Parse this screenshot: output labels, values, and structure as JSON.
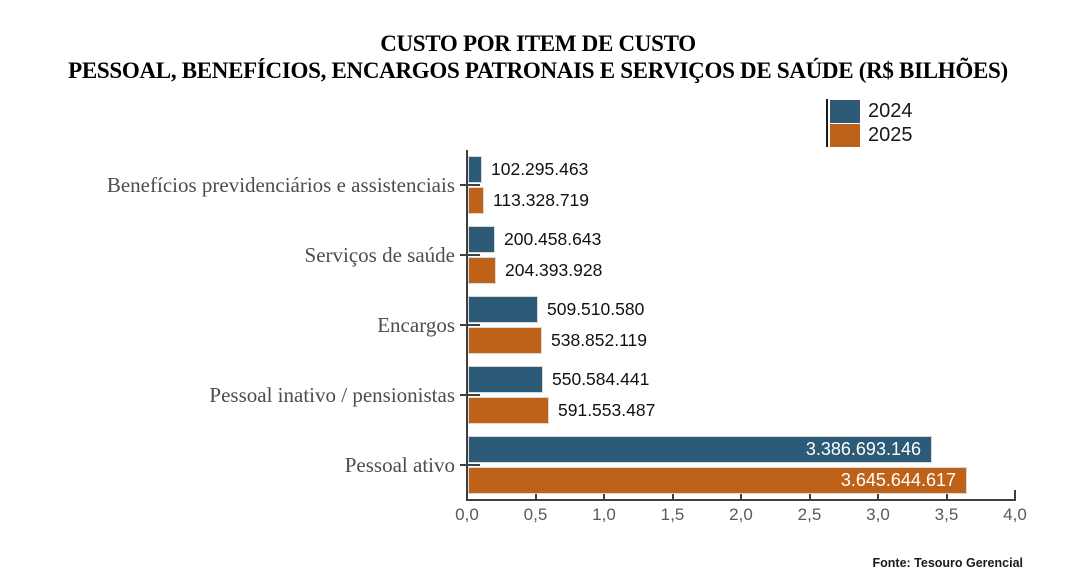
{
  "title": {
    "line1": "CUSTO POR ITEM DE CUSTO",
    "line2": "PESSOAL, BENEFÍCIOS, ENCARGOS PATRONAIS E SERVIÇOS DE SAÚDE (R$ BILHÕES)"
  },
  "source": "Fonte: Tesouro Gerencial",
  "colors": {
    "series_2024": "#2d5a76",
    "series_2025": "#bf6219",
    "axis": "#3f3f3f",
    "tick_label": "#595959",
    "category_label": "#4d4d4d",
    "background": "#ffffff"
  },
  "chart_data": {
    "type": "bar",
    "orientation": "horizontal",
    "title": "CUSTO POR ITEM DE CUSTO — PESSOAL, BENEFÍCIOS, ENCARGOS PATRONAIS E SERVIÇOS DE SAÚDE (R$ BILHÕES)",
    "categories": [
      "Benefícios previdenciários e assistenciais",
      "Serviços de saúde",
      "Encargos",
      "Pessoal inativo / pensionistas",
      "Pessoal ativo"
    ],
    "series": [
      {
        "name": "2024",
        "color": "#2d5a76",
        "values": [
          102295463,
          200458643,
          509510580,
          550584441,
          3386693146
        ],
        "labels": [
          "102.295.463",
          "200.458.643",
          "509.510.580",
          "550.584.441",
          "3.386.693.146"
        ]
      },
      {
        "name": "2025",
        "color": "#bf6219",
        "values": [
          113328719,
          204393928,
          538852119,
          591553487,
          3645644617
        ],
        "labels": [
          "113.328.719",
          "204.393.928",
          "538.852.119",
          "591.553.487",
          "3.645.644.617"
        ]
      }
    ],
    "xlim": [
      0,
      4
    ],
    "x_tick_values": [
      0,
      0.5,
      1.0,
      1.5,
      2.0,
      2.5,
      3.0,
      3.5,
      4.0
    ],
    "x_tick_labels": [
      "0,0",
      "0,5",
      "1,0",
      "1,5",
      "2,0",
      "2,5",
      "3,0",
      "3,5",
      "4,0"
    ],
    "axis_unit": "R$ bilhões",
    "value_scale_per_axis_unit": 1000000000,
    "legend_position": "top-right",
    "grid": false
  }
}
